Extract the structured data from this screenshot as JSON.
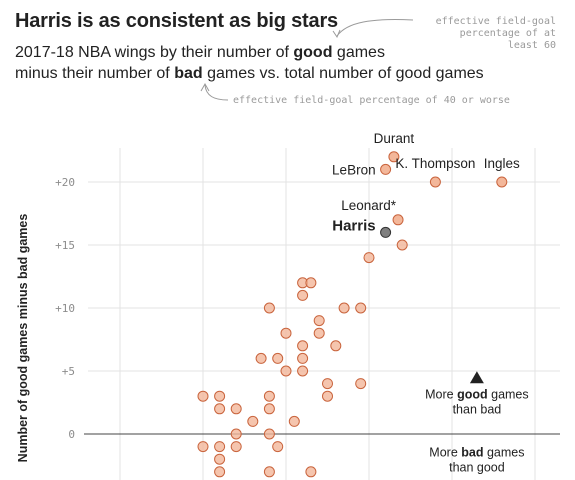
{
  "header": {
    "title": "Harris is as consistent as big stars",
    "subtitle_l1_pre": "2017-18 NBA wings by their number of ",
    "subtitle_l1_bold": "good",
    "subtitle_l1_post": " games",
    "subtitle_l2_pre": "minus their number of ",
    "subtitle_l2_bold": "bad",
    "subtitle_l2_post": " games vs. total number of good games"
  },
  "notes": {
    "good_def": [
      "effective field-goal",
      "percentage of at",
      "least 60"
    ],
    "bad_def": "effective field-goal percentage of 40 or worse"
  },
  "chart_data": {
    "type": "scatter",
    "title": "Harris is as consistent as big stars",
    "ylabel": "Number of good games minus bad games",
    "xlabel": "",
    "xlim": [
      0,
      65
    ],
    "ylim": [
      -4,
      27
    ],
    "x_gridlines": [
      5,
      15,
      25,
      35,
      45,
      55
    ],
    "y_ticks": [
      {
        "value": 20,
        "label": "+20"
      },
      {
        "value": 15,
        "label": "+15"
      },
      {
        "value": 10,
        "label": "+10"
      },
      {
        "value": 5,
        "label": "+5"
      },
      {
        "value": 0,
        "label": "0"
      }
    ],
    "colors": {
      "point_fill": "#f3b79a",
      "point_stroke": "#c9643d",
      "highlight_fill": "#7f7f7f",
      "highlight_stroke": "#333333"
    },
    "labeled_points": [
      {
        "name": "Durant",
        "x": 38,
        "y": 22,
        "label_pos": "above"
      },
      {
        "name": "LeBron",
        "x": 37,
        "y": 21,
        "label_pos": "left"
      },
      {
        "name": "K. Thompson",
        "x": 43,
        "y": 20,
        "label_pos": "above"
      },
      {
        "name": "Ingles",
        "x": 51,
        "y": 20,
        "label_pos": "above"
      },
      {
        "name": "Leonard*",
        "x": 38.5,
        "y": 17,
        "label_pos": "above-left"
      },
      {
        "name": "Harris",
        "x": 37,
        "y": 16,
        "label_pos": "left",
        "highlight": true
      }
    ],
    "points": [
      {
        "x": 39,
        "y": 15
      },
      {
        "x": 35,
        "y": 14
      },
      {
        "x": 27,
        "y": 12
      },
      {
        "x": 28,
        "y": 12
      },
      {
        "x": 27,
        "y": 11
      },
      {
        "x": 23,
        "y": 10
      },
      {
        "x": 32,
        "y": 10
      },
      {
        "x": 34,
        "y": 10
      },
      {
        "x": 29,
        "y": 9
      },
      {
        "x": 25,
        "y": 8
      },
      {
        "x": 29,
        "y": 8
      },
      {
        "x": 27,
        "y": 7
      },
      {
        "x": 31,
        "y": 7
      },
      {
        "x": 22,
        "y": 6
      },
      {
        "x": 24,
        "y": 6
      },
      {
        "x": 27,
        "y": 6
      },
      {
        "x": 25,
        "y": 5
      },
      {
        "x": 27,
        "y": 5
      },
      {
        "x": 30,
        "y": 4
      },
      {
        "x": 34,
        "y": 4
      },
      {
        "x": 15,
        "y": 3
      },
      {
        "x": 17,
        "y": 3
      },
      {
        "x": 23,
        "y": 3
      },
      {
        "x": 30,
        "y": 3
      },
      {
        "x": 17,
        "y": 2
      },
      {
        "x": 19,
        "y": 2
      },
      {
        "x": 23,
        "y": 2
      },
      {
        "x": 21,
        "y": 1
      },
      {
        "x": 26,
        "y": 1
      },
      {
        "x": 19,
        "y": 0
      },
      {
        "x": 23,
        "y": 0
      },
      {
        "x": 15,
        "y": -1
      },
      {
        "x": 17,
        "y": -1
      },
      {
        "x": 19,
        "y": -1
      },
      {
        "x": 24,
        "y": -1
      },
      {
        "x": 17,
        "y": -2
      },
      {
        "x": 17,
        "y": -3
      },
      {
        "x": 23,
        "y": -3
      },
      {
        "x": 28,
        "y": -3
      }
    ],
    "annotations": [
      {
        "text_lines": [
          "More ",
          "good",
          " games",
          "than bad"
        ],
        "x": 48,
        "y": 2.8,
        "arrow": "up",
        "arrow_x": 48,
        "arrow_y": 4.5
      },
      {
        "text_lines": [
          "More ",
          "bad",
          " games",
          "than good"
        ],
        "x": 48,
        "y": -1.8,
        "arrow": "none"
      }
    ]
  }
}
